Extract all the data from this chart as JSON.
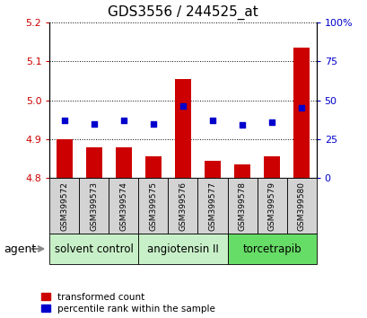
{
  "title": "GDS3556 / 244525_at",
  "samples": [
    "GSM399572",
    "GSM399573",
    "GSM399574",
    "GSM399575",
    "GSM399576",
    "GSM399577",
    "GSM399578",
    "GSM399579",
    "GSM399580"
  ],
  "red_values": [
    4.9,
    4.88,
    4.88,
    4.855,
    5.055,
    4.845,
    4.835,
    4.855,
    5.135
  ],
  "blue_values": [
    37,
    35,
    37,
    35,
    46,
    37,
    34,
    36,
    45
  ],
  "ylim_left": [
    4.8,
    5.2
  ],
  "ylim_right": [
    0,
    100
  ],
  "yticks_left": [
    4.8,
    4.9,
    5.0,
    5.1,
    5.2
  ],
  "yticks_right": [
    0,
    25,
    50,
    75,
    100
  ],
  "ytick_labels_right": [
    "0",
    "25",
    "50",
    "75",
    "100%"
  ],
  "groups": [
    {
      "label": "solvent control",
      "start": 0,
      "end": 3,
      "color": "#c8f0c8"
    },
    {
      "label": "angiotensin II",
      "start": 3,
      "end": 6,
      "color": "#c8f0c8"
    },
    {
      "label": "torcetrapib",
      "start": 6,
      "end": 9,
      "color": "#66dd66"
    }
  ],
  "bar_color": "#cc0000",
  "dot_color": "#0000cc",
  "bar_bottom": 4.8,
  "agent_label": "agent",
  "legend_red": "transformed count",
  "legend_blue": "percentile rank within the sample",
  "tick_color_left": "#cc0000",
  "tick_color_right": "#0000cc",
  "title_fontsize": 11,
  "legend_fontsize": 7.5,
  "group_fontsize": 8.5,
  "sample_fontsize": 6.5
}
